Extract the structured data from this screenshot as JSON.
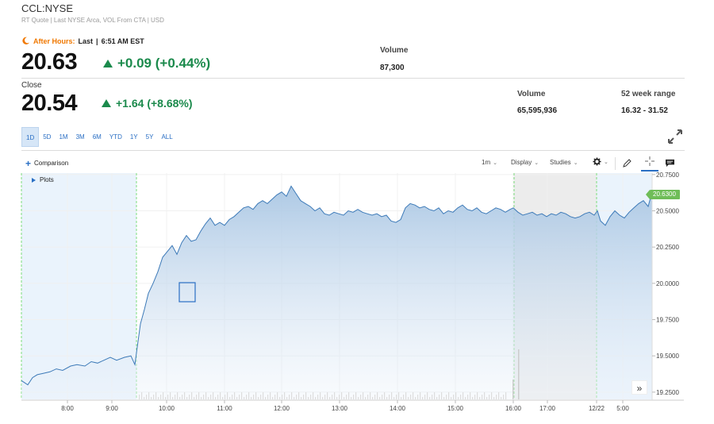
{
  "header": {
    "ticker": "CCL:NYSE",
    "subline": "RT Quote | Last NYSE Arca, VOL From CTA | USD"
  },
  "after_hours": {
    "label": "After Hours:",
    "last_label": "Last",
    "separator": "|",
    "time": "6:51 AM EST",
    "price": "20.63",
    "change": "+0.09 (+0.44%)",
    "volume_label": "Volume",
    "volume": "87,300"
  },
  "close": {
    "label": "Close",
    "price": "20.54",
    "change": "+1.64 (+8.68%)",
    "volume_label": "Volume",
    "volume": "65,595,936",
    "range_label": "52 week range",
    "range": "16.32 - 31.52"
  },
  "ranges": [
    "1D",
    "5D",
    "1M",
    "3M",
    "6M",
    "YTD",
    "1Y",
    "5Y",
    "ALL"
  ],
  "active_range": "1D",
  "toolbar": {
    "comparison": "Comparison",
    "interval": "1m",
    "display": "Display",
    "studies": "Studies"
  },
  "plots_label": "Plots",
  "current_price_tag": "20.6300",
  "colors": {
    "accent": "#2a6fc4",
    "up": "#1b8a4c",
    "after_hours": "#f07800",
    "line": "#3d7ab8",
    "price_tag": "#6fbd58"
  },
  "chart_data": {
    "type": "area",
    "x_ticks": [
      "8:00",
      "9:00",
      "10:00",
      "11:00",
      "12:00",
      "13:00",
      "14:00",
      "15:00",
      "16:00",
      "17:00",
      "12/22",
      "5:00"
    ],
    "y_ticks": [
      "20.7500",
      "20.5000",
      "20.2500",
      "20.0000",
      "19.7500",
      "19.5000",
      "19.2500"
    ],
    "ylim": [
      19.2,
      20.76
    ],
    "series": [
      {
        "points": [
          [
            0,
            19.33
          ],
          [
            8,
            19.3
          ],
          [
            14,
            19.35
          ],
          [
            20,
            19.37
          ],
          [
            28,
            19.38
          ],
          [
            36,
            19.39
          ],
          [
            44,
            19.41
          ],
          [
            52,
            19.4
          ],
          [
            62,
            19.43
          ],
          [
            70,
            19.44
          ],
          [
            80,
            19.43
          ],
          [
            88,
            19.46
          ],
          [
            96,
            19.45
          ],
          [
            104,
            19.47
          ],
          [
            112,
            19.49
          ],
          [
            120,
            19.47
          ],
          [
            130,
            19.49
          ],
          [
            138,
            19.5
          ],
          [
            143,
            19.44
          ],
          [
            146,
            19.56
          ],
          [
            150,
            19.72
          ],
          [
            155,
            19.82
          ],
          [
            160,
            19.93
          ],
          [
            166,
            20.0
          ],
          [
            172,
            20.08
          ],
          [
            178,
            20.18
          ],
          [
            184,
            20.22
          ],
          [
            190,
            20.26
          ],
          [
            196,
            20.2
          ],
          [
            202,
            20.28
          ],
          [
            208,
            20.33
          ],
          [
            214,
            20.29
          ],
          [
            220,
            20.3
          ],
          [
            226,
            20.36
          ],
          [
            232,
            20.41
          ],
          [
            238,
            20.45
          ],
          [
            244,
            20.4
          ],
          [
            250,
            20.42
          ],
          [
            256,
            20.4
          ],
          [
            262,
            20.44
          ],
          [
            268,
            20.46
          ],
          [
            274,
            20.49
          ],
          [
            280,
            20.52
          ],
          [
            286,
            20.53
          ],
          [
            292,
            20.51
          ],
          [
            298,
            20.55
          ],
          [
            304,
            20.57
          ],
          [
            310,
            20.55
          ],
          [
            316,
            20.58
          ],
          [
            322,
            20.61
          ],
          [
            328,
            20.63
          ],
          [
            334,
            20.6
          ],
          [
            340,
            20.67
          ],
          [
            346,
            20.62
          ],
          [
            352,
            20.57
          ],
          [
            358,
            20.55
          ],
          [
            364,
            20.53
          ],
          [
            370,
            20.5
          ],
          [
            376,
            20.52
          ],
          [
            382,
            20.48
          ],
          [
            388,
            20.47
          ],
          [
            394,
            20.49
          ],
          [
            400,
            20.48
          ],
          [
            406,
            20.47
          ],
          [
            412,
            20.5
          ],
          [
            418,
            20.49
          ],
          [
            424,
            20.51
          ],
          [
            430,
            20.49
          ],
          [
            436,
            20.48
          ],
          [
            442,
            20.47
          ],
          [
            448,
            20.48
          ],
          [
            454,
            20.46
          ],
          [
            460,
            20.47
          ],
          [
            466,
            20.43
          ],
          [
            472,
            20.42
          ],
          [
            478,
            20.44
          ],
          [
            484,
            20.52
          ],
          [
            490,
            20.55
          ],
          [
            496,
            20.54
          ],
          [
            502,
            20.52
          ],
          [
            508,
            20.53
          ],
          [
            514,
            20.51
          ],
          [
            520,
            20.5
          ],
          [
            526,
            20.52
          ],
          [
            532,
            20.48
          ],
          [
            538,
            20.5
          ],
          [
            544,
            20.49
          ],
          [
            550,
            20.52
          ],
          [
            556,
            20.54
          ],
          [
            562,
            20.51
          ],
          [
            568,
            20.5
          ],
          [
            574,
            20.52
          ],
          [
            580,
            20.49
          ],
          [
            586,
            20.48
          ],
          [
            592,
            20.5
          ],
          [
            598,
            20.52
          ],
          [
            604,
            20.51
          ],
          [
            610,
            20.49
          ],
          [
            616,
            20.51
          ],
          [
            620,
            20.52
          ],
          [
            626,
            20.49
          ],
          [
            632,
            20.47
          ],
          [
            638,
            20.48
          ],
          [
            644,
            20.49
          ],
          [
            650,
            20.47
          ],
          [
            656,
            20.48
          ],
          [
            662,
            20.46
          ],
          [
            668,
            20.48
          ],
          [
            674,
            20.47
          ],
          [
            680,
            20.49
          ],
          [
            686,
            20.48
          ],
          [
            692,
            20.46
          ],
          [
            698,
            20.45
          ],
          [
            704,
            20.46
          ],
          [
            710,
            20.48
          ],
          [
            716,
            20.49
          ],
          [
            722,
            20.47
          ],
          [
            726,
            20.5
          ],
          [
            730,
            20.43
          ],
          [
            736,
            20.4
          ],
          [
            742,
            20.46
          ],
          [
            748,
            20.5
          ],
          [
            754,
            20.47
          ],
          [
            760,
            20.45
          ],
          [
            766,
            20.49
          ],
          [
            772,
            20.52
          ],
          [
            778,
            20.55
          ],
          [
            784,
            20.57
          ],
          [
            790,
            20.53
          ],
          [
            795,
            20.63
          ]
        ]
      }
    ]
  }
}
